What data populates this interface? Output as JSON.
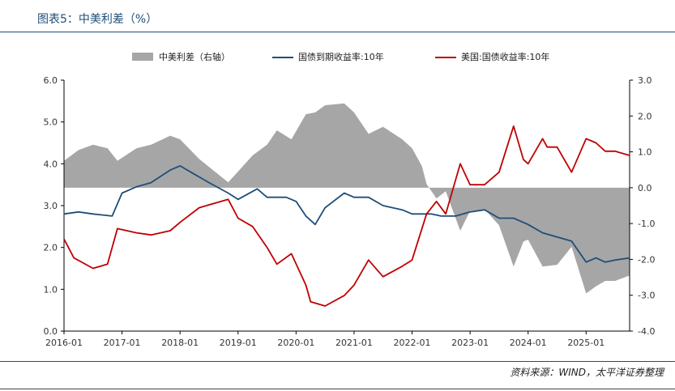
{
  "header": {
    "title": "图表5：中美利差（%）"
  },
  "footer": {
    "source": "资料来源：WIND，太平洋证券整理"
  },
  "colors": {
    "spread": "#a6a6a6",
    "cn": "#1f4e79",
    "us": "#c00000",
    "title": "#1f4e79"
  },
  "chart_data": {
    "type": "line",
    "title": "",
    "legend_position": "top",
    "legend": [
      "中美利差（右轴）",
      "国债到期收益率:10年",
      "美国:国债收益率:10年"
    ],
    "x_ticks": [
      "2016-01",
      "2017-01",
      "2018-01",
      "2019-01",
      "2020-01",
      "2021-01",
      "2022-01",
      "2023-01",
      "2024-01",
      "2025-01"
    ],
    "y_left": {
      "min": 0,
      "max": 6,
      "ticks": [
        "0.0",
        "1.0",
        "2.0",
        "3.0",
        "4.0",
        "5.0",
        "6.0"
      ]
    },
    "y_right": {
      "min": -4,
      "max": 3,
      "ticks": [
        "-4.0",
        "-3.0",
        "-2.0",
        "-1.0",
        "0.0",
        "1.0",
        "2.0",
        "3.0"
      ]
    },
    "x_range": [
      2016.0,
      2025.75
    ],
    "series": [
      {
        "name": "国债到期收益率:10年",
        "axis": "left",
        "style": "line",
        "x": [
          2016.0,
          2016.25,
          2016.5,
          2016.83,
          2017.0,
          2017.25,
          2017.5,
          2017.83,
          2018.0,
          2018.25,
          2018.5,
          2018.83,
          2019.0,
          2019.33,
          2019.5,
          2019.83,
          2020.0,
          2020.17,
          2020.33,
          2020.5,
          2020.83,
          2021.0,
          2021.25,
          2021.5,
          2021.83,
          2022.0,
          2022.33,
          2022.5,
          2022.75,
          2023.0,
          2023.25,
          2023.5,
          2023.75,
          2024.0,
          2024.25,
          2024.5,
          2024.75,
          2025.0,
          2025.17,
          2025.33,
          2025.5,
          2025.75
        ],
        "values": [
          2.8,
          2.85,
          2.8,
          2.75,
          3.3,
          3.45,
          3.55,
          3.85,
          3.95,
          3.75,
          3.55,
          3.3,
          3.15,
          3.4,
          3.2,
          3.2,
          3.1,
          2.75,
          2.55,
          2.95,
          3.3,
          3.2,
          3.2,
          3.0,
          2.9,
          2.8,
          2.8,
          2.75,
          2.75,
          2.85,
          2.9,
          2.7,
          2.7,
          2.55,
          2.35,
          2.25,
          2.15,
          1.65,
          1.75,
          1.65,
          1.7,
          1.75
        ]
      },
      {
        "name": "美国:国债收益率:10年",
        "axis": "left",
        "style": "line",
        "x": [
          2016.0,
          2016.17,
          2016.5,
          2016.75,
          2016.92,
          2017.25,
          2017.5,
          2017.83,
          2018.0,
          2018.33,
          2018.83,
          2019.0,
          2019.25,
          2019.5,
          2019.67,
          2019.92,
          2020.17,
          2020.25,
          2020.5,
          2020.83,
          2021.0,
          2021.25,
          2021.5,
          2021.83,
          2022.0,
          2022.25,
          2022.42,
          2022.58,
          2022.83,
          2023.0,
          2023.25,
          2023.5,
          2023.75,
          2023.92,
          2024.0,
          2024.25,
          2024.33,
          2024.5,
          2024.75,
          2025.0,
          2025.17,
          2025.33,
          2025.5,
          2025.75
        ],
        "values": [
          2.2,
          1.75,
          1.5,
          1.6,
          2.45,
          2.35,
          2.3,
          2.4,
          2.6,
          2.95,
          3.15,
          2.7,
          2.5,
          2.0,
          1.6,
          1.85,
          1.1,
          0.7,
          0.6,
          0.85,
          1.1,
          1.7,
          1.3,
          1.55,
          1.7,
          2.8,
          3.1,
          2.8,
          4.0,
          3.5,
          3.5,
          3.8,
          4.9,
          4.1,
          4.0,
          4.6,
          4.4,
          4.4,
          3.8,
          4.6,
          4.5,
          4.3,
          4.3,
          4.2
        ]
      },
      {
        "name": "中美利差（右轴）",
        "axis": "right",
        "style": "area",
        "x": [
          2016.0,
          2016.25,
          2016.5,
          2016.75,
          2016.92,
          2017.25,
          2017.5,
          2017.83,
          2018.0,
          2018.33,
          2018.83,
          2019.0,
          2019.25,
          2019.5,
          2019.67,
          2019.92,
          2020.17,
          2020.33,
          2020.5,
          2020.83,
          2021.0,
          2021.25,
          2021.5,
          2021.83,
          2022.0,
          2022.17,
          2022.25,
          2022.42,
          2022.58,
          2022.83,
          2023.0,
          2023.25,
          2023.5,
          2023.75,
          2023.92,
          2024.0,
          2024.25,
          2024.5,
          2024.75,
          2025.0,
          2025.17,
          2025.33,
          2025.5,
          2025.75
        ],
        "values": [
          0.75,
          1.05,
          1.2,
          1.1,
          0.75,
          1.1,
          1.2,
          1.45,
          1.35,
          0.8,
          0.15,
          0.45,
          0.9,
          1.2,
          1.6,
          1.35,
          2.05,
          2.1,
          2.3,
          2.35,
          2.1,
          1.5,
          1.7,
          1.35,
          1.1,
          0.6,
          0.1,
          -0.3,
          -0.1,
          -1.2,
          -0.65,
          -0.6,
          -1.05,
          -2.2,
          -1.5,
          -1.45,
          -2.2,
          -2.15,
          -1.65,
          -2.95,
          -2.75,
          -2.6,
          -2.6,
          -2.45
        ]
      }
    ]
  }
}
